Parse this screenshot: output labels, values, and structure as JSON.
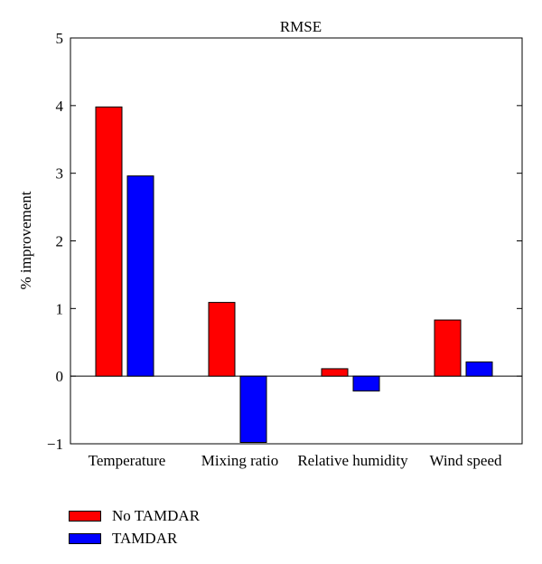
{
  "chart_data": {
    "type": "bar",
    "title": "RMSE",
    "xlabel": "",
    "ylabel": "% improvement",
    "categories": [
      "Temperature",
      "Mixing ratio",
      "Relative humidity",
      "Wind speed"
    ],
    "series": [
      {
        "name": "No TAMDAR",
        "color": "#ff0000",
        "values": [
          3.98,
          1.09,
          0.11,
          0.83
        ]
      },
      {
        "name": "TAMDAR",
        "color": "#0000ff",
        "values": [
          2.96,
          -0.98,
          -0.22,
          0.21
        ]
      }
    ],
    "ylim": [
      -1,
      5
    ],
    "yticks": [
      -1,
      0,
      1,
      2,
      3,
      4,
      5
    ],
    "ytick_labels": [
      "−1",
      "0",
      "1",
      "2",
      "3",
      "4",
      "5"
    ],
    "grid": false,
    "legend_position": "bottom-left"
  }
}
